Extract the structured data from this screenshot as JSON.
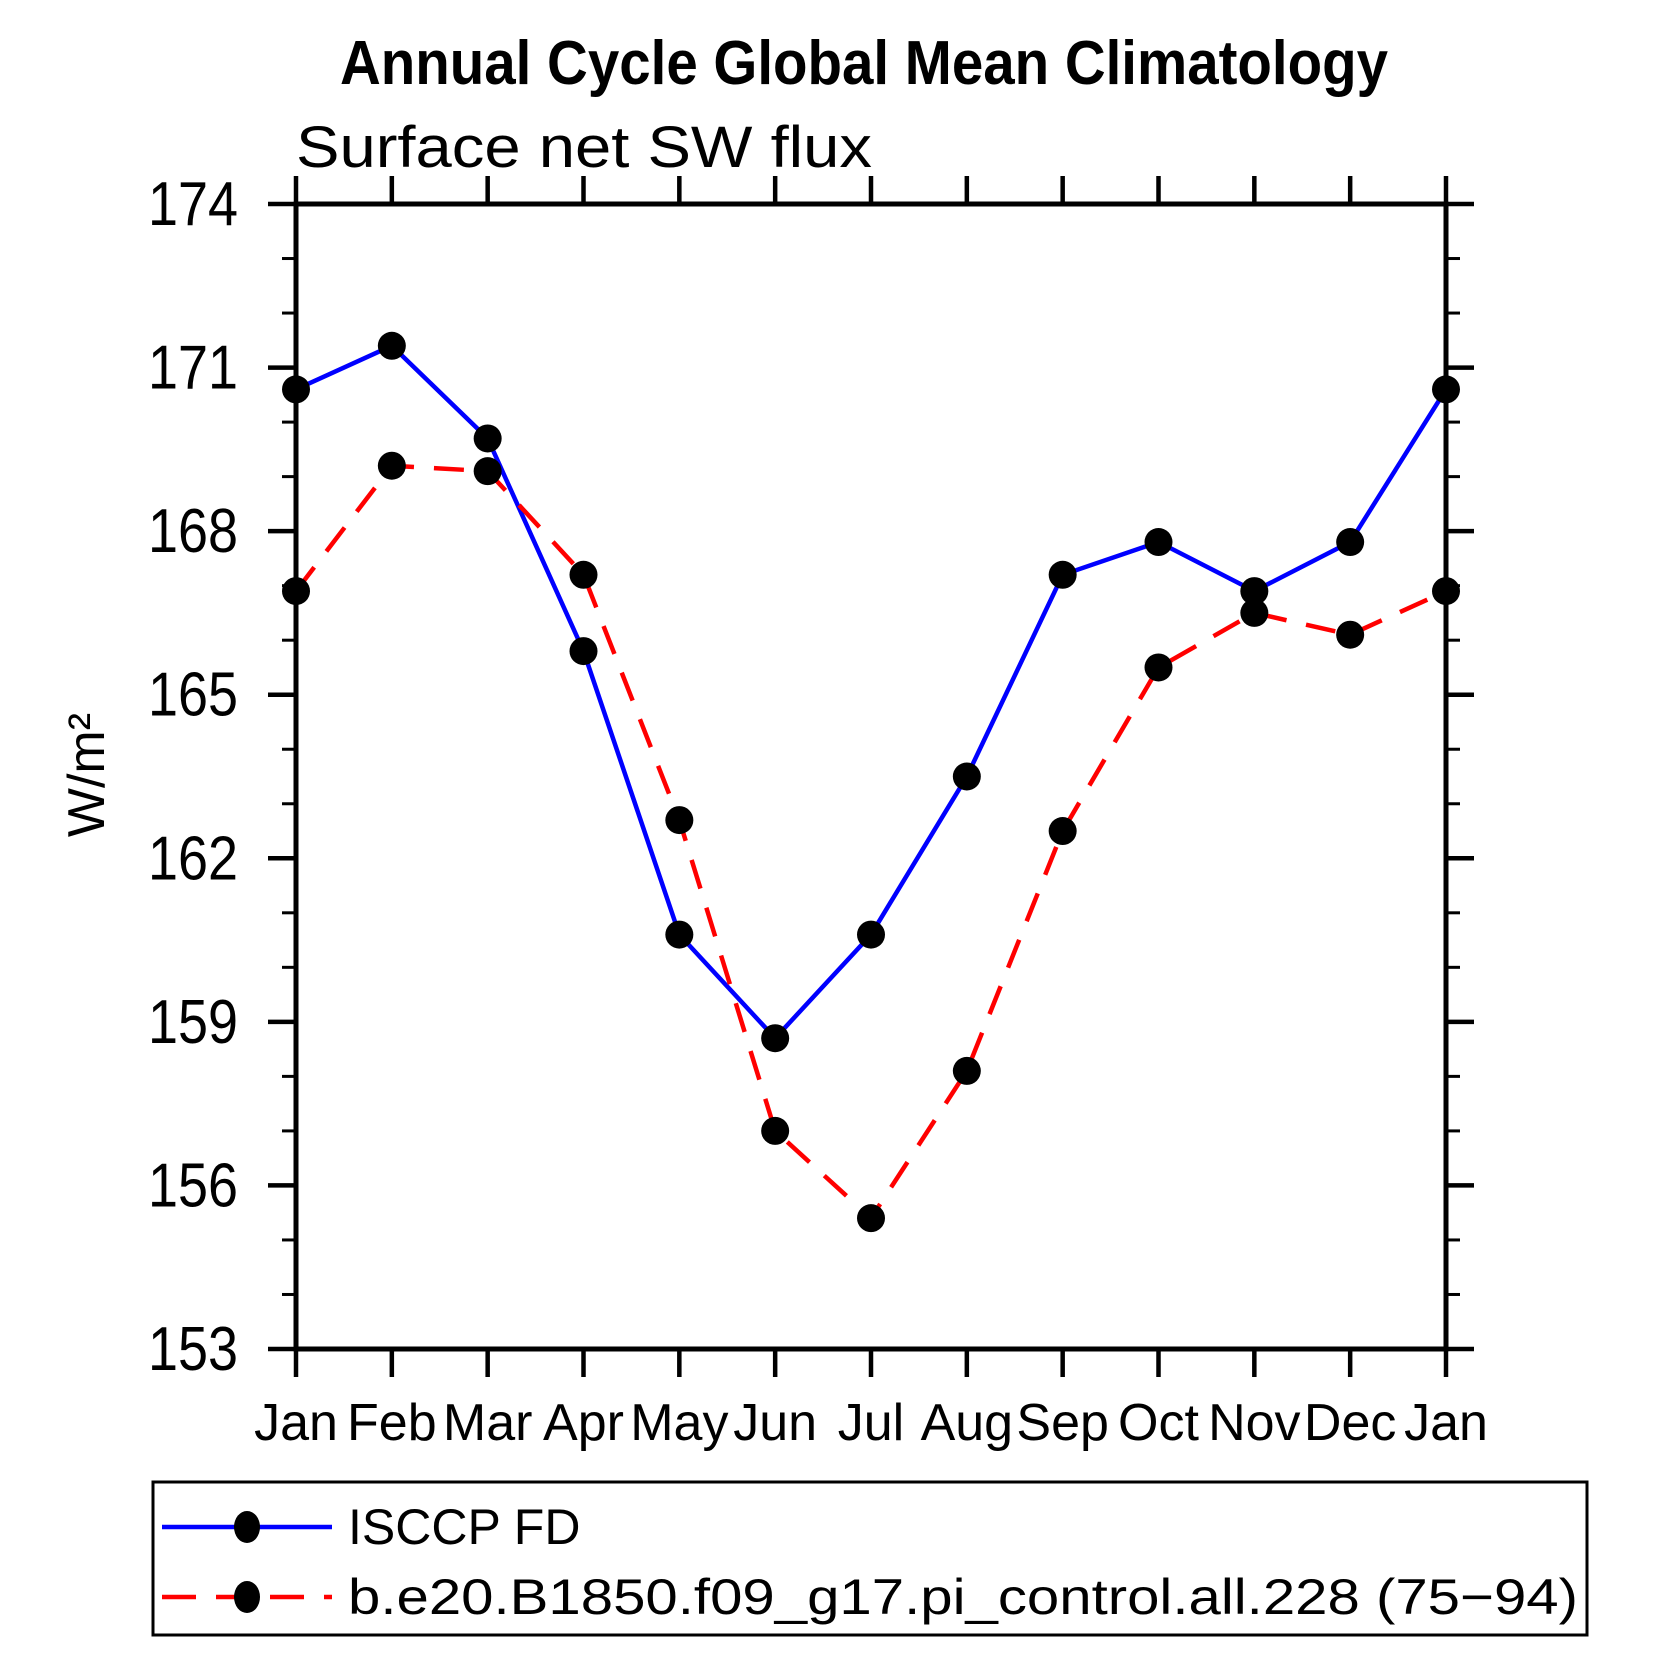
{
  "chart_data": {
    "type": "line",
    "title": "Annual Cycle Global Mean Climatology",
    "subtitle": "Surface net SW flux",
    "ylabel": "W/m²",
    "xlabel": "",
    "grid": false,
    "legend_position": "bottom",
    "categories": [
      "Jan",
      "Feb",
      "Mar",
      "Apr",
      "May",
      "Jun",
      "Jul",
      "Aug",
      "Sep",
      "Oct",
      "Nov",
      "Dec",
      "Jan"
    ],
    "ylim": [
      153,
      174
    ],
    "yticks": [
      153,
      156,
      159,
      162,
      165,
      168,
      171,
      174
    ],
    "ytick_minor_step": 1,
    "axis_color": "#000000",
    "series": [
      {
        "name": "ISCCP FD",
        "color": "#0000ff",
        "line_style": "solid",
        "marker": "filled-circle",
        "marker_color": "#000000",
        "values": [
          170.6,
          171.4,
          169.7,
          165.8,
          160.6,
          158.7,
          160.6,
          163.5,
          167.2,
          167.8,
          166.9,
          167.8,
          170.6
        ]
      },
      {
        "name": "b.e20.B1850.f09_g17.pi_control.all.228 (75−94)",
        "color": "#ff0000",
        "line_style": "dashed",
        "marker": "filled-circle",
        "marker_color": "#000000",
        "values": [
          166.9,
          169.2,
          169.1,
          167.2,
          162.7,
          157.0,
          155.4,
          158.1,
          162.5,
          165.5,
          166.5,
          166.1,
          166.9
        ]
      }
    ]
  }
}
